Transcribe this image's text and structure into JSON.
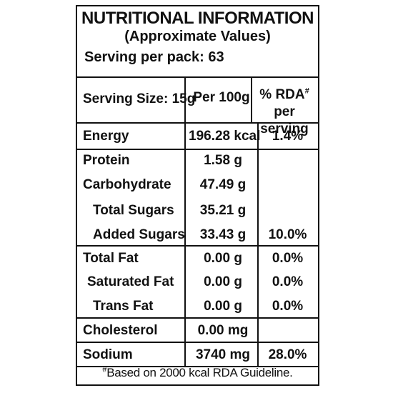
{
  "title": "NUTRITIONAL INFORMATION",
  "subtitle": "(Approximate Values)",
  "serving_per_pack": "Serving per pack: 63",
  "header": {
    "serving_size": "Serving Size: 15g",
    "per_100g": "Per 100g",
    "rda_prefix": "% RDA",
    "rda_mark": "#",
    "rda_suffix": " per serving"
  },
  "rows": [
    {
      "name": "Energy",
      "per100g": "196.28 kcal",
      "rda": "1.4%"
    },
    {
      "name": "Protein",
      "per100g": "1.58 g",
      "rda": ""
    },
    {
      "name": "Carbohydrate",
      "per100g": "47.49 g",
      "rda": ""
    },
    {
      "name": "Total Sugars",
      "per100g": "35.21 g",
      "rda": ""
    },
    {
      "name": "Added Sugars",
      "per100g": "33.43 g",
      "rda": "10.0%"
    },
    {
      "name": "Total Fat",
      "per100g": "0.00 g",
      "rda": "0.0%"
    },
    {
      "name": "Saturated Fat",
      "per100g": "0.00 g",
      "rda": "0.0%"
    },
    {
      "name": "Trans Fat",
      "per100g": "0.00 g",
      "rda": "0.0%"
    },
    {
      "name": "Cholesterol",
      "per100g": "0.00 mg",
      "rda": ""
    },
    {
      "name": "Sodium",
      "per100g": "3740 mg",
      "rda": "28.0%"
    }
  ],
  "footnote_mark": "#",
  "footnote": "Based on 2000 kcal RDA Guideline."
}
